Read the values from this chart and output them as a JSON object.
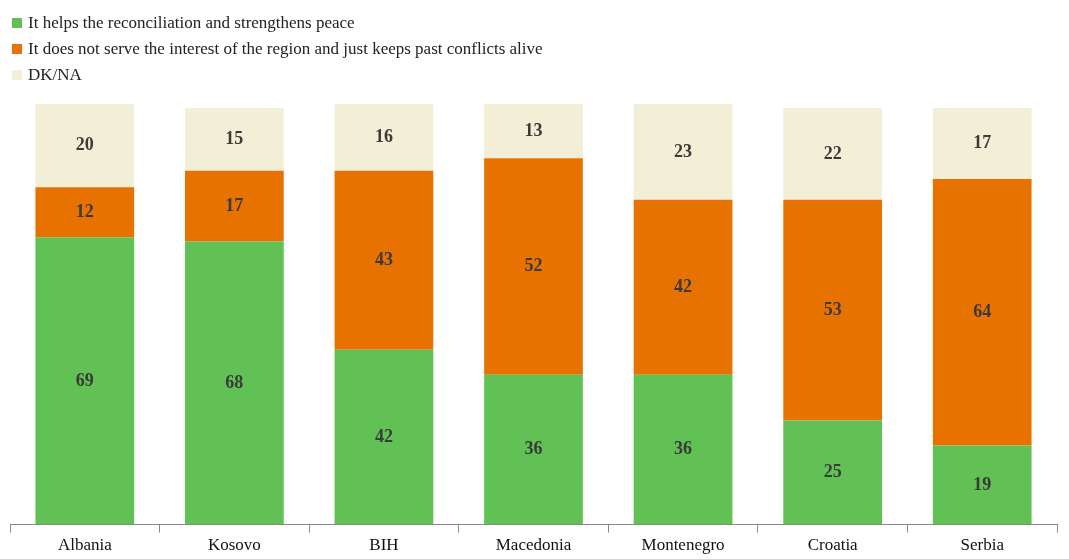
{
  "chart_data": {
    "type": "bar",
    "stacked": true,
    "data_labels": true,
    "legend": "top left",
    "grid": false,
    "categories": [
      "Albania",
      "Kosovo",
      "BIH",
      "Macedonia",
      "Montenegro",
      "Croatia",
      "Serbia"
    ],
    "series": [
      {
        "name": "It helps the reconciliation and strengthens peace",
        "color": "#62c155",
        "values": [
          69,
          68,
          42,
          36,
          36,
          25,
          19
        ]
      },
      {
        "name": "It does not serve the interest of the region and just keeps past conflicts alive",
        "color": "#e87200",
        "values": [
          12,
          17,
          43,
          52,
          42,
          53,
          64
        ]
      },
      {
        "name": "DK/NA",
        "color": "#f3eed6",
        "values": [
          20,
          15,
          16,
          13,
          23,
          22,
          17
        ]
      }
    ]
  }
}
